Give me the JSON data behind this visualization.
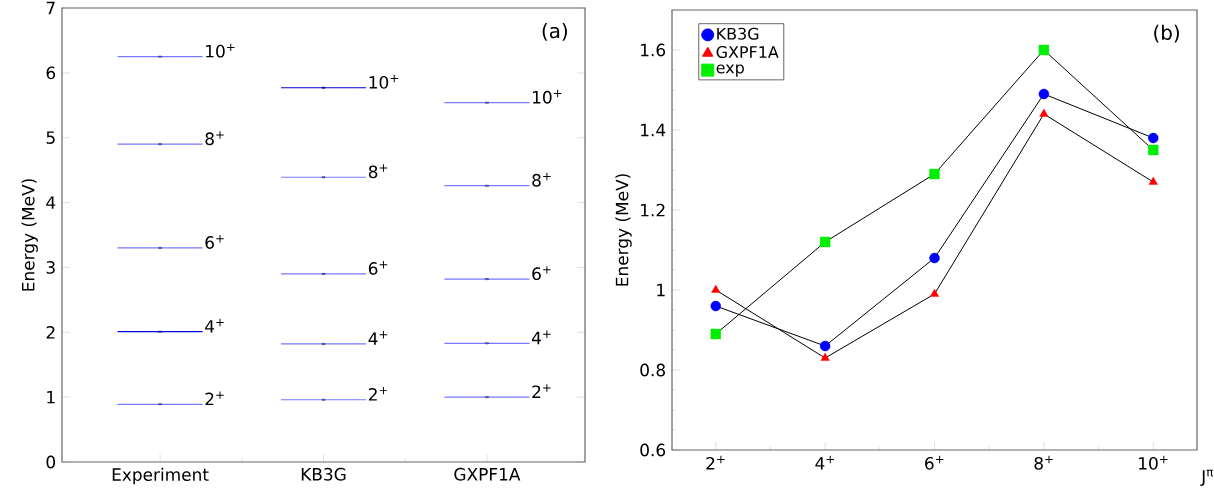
{
  "chart_data": [
    {
      "type": "scatter",
      "ylabel": "Energy (MeV)",
      "annotations": [
        "(a)"
      ],
      "categories": [
        "Experiment",
        "KB3G",
        "GXPF1A"
      ],
      "ylim": [
        0,
        7
      ],
      "yticks": [
        0,
        1,
        2,
        3,
        4,
        5,
        6,
        7
      ],
      "series": [
        {
          "name": "2$^{+}$",
          "colors": [
            "#7777ff",
            "#7777ff",
            "#7777ff"
          ],
          "values": [
            0.89,
            0.96,
            1.0
          ]
        },
        {
          "name": "4$^{+}$",
          "colors": [
            "#0000dd",
            "#7777ff",
            "#7777ff"
          ],
          "values": [
            2.01,
            1.82,
            1.83
          ]
        },
        {
          "name": "6$^{+}$",
          "colors": [
            "#7777ff",
            "#7777ff",
            "#7777ff"
          ],
          "values": [
            3.3,
            2.9,
            2.82
          ]
        },
        {
          "name": "8$^{+}$",
          "colors": [
            "#7777ff",
            "#7777ff",
            "#7777ff"
          ],
          "values": [
            4.9,
            4.39,
            4.26
          ]
        },
        {
          "name": "10$^{+}$",
          "colors": [
            "#7777ff",
            "#0000dd",
            "#7777ff"
          ],
          "values": [
            6.25,
            5.77,
            5.54
          ]
        }
      ]
    },
    {
      "type": "line",
      "ylabel": "Energy (MeV)",
      "xlabel": "J$^{π}$",
      "annotations": [
        "(b)"
      ],
      "categories": [
        "2$^{+}$",
        "4$^{+}$",
        "6$^{+}$",
        "8$^{+}$",
        "10$^{+}$"
      ],
      "ylim": [
        0.6,
        1.7
      ],
      "yticks": [
        0.6,
        0.8,
        1,
        1.2,
        1.4,
        1.6
      ],
      "legend": "top left",
      "series": [
        {
          "name": "KB3G",
          "color": "#0000ff",
          "marker": "circle",
          "values": [
            0.96,
            0.86,
            1.08,
            1.49,
            1.38
          ]
        },
        {
          "name": "GXPF1A",
          "color": "#ff0000",
          "marker": "triangle",
          "values": [
            1.0,
            0.83,
            0.99,
            1.44,
            1.27
          ]
        },
        {
          "name": "exp",
          "color": "#00ee00",
          "marker": "square",
          "values": [
            0.89,
            1.12,
            1.29,
            1.6,
            1.35
          ]
        }
      ]
    }
  ]
}
